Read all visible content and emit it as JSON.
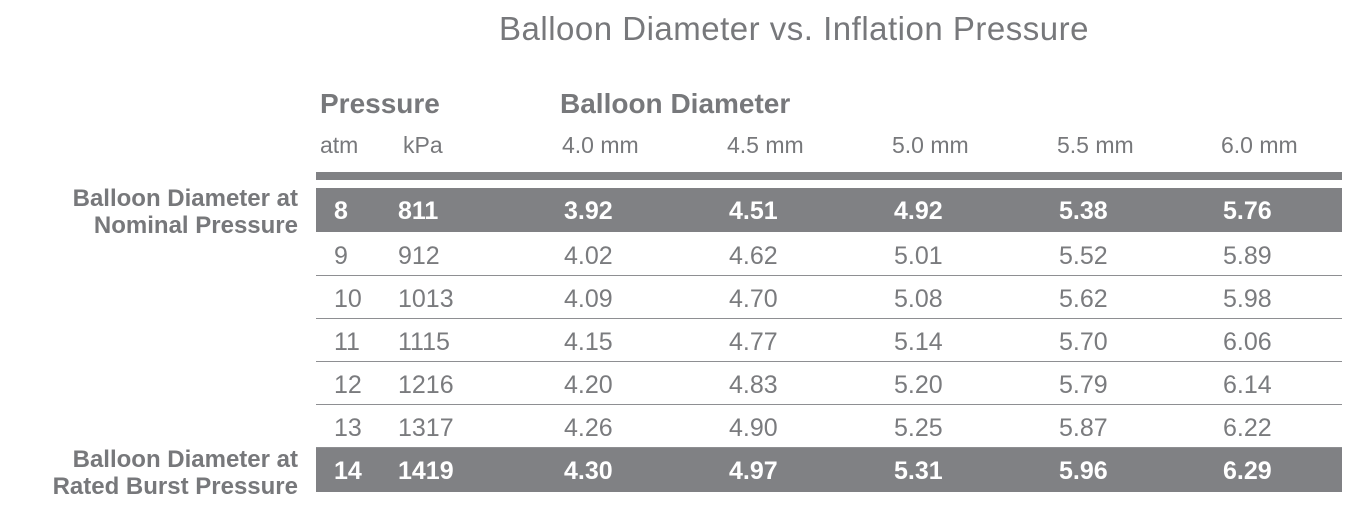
{
  "title": "Balloon Diameter vs. Inflation Pressure",
  "headers": {
    "pressure": "Pressure",
    "balloon_diameter": "Balloon Diameter",
    "atm": "atm",
    "kpa": "kPa",
    "sizes": [
      "4.0 mm",
      "4.5 mm",
      "5.0 mm",
      "5.5 mm",
      "6.0 mm"
    ]
  },
  "side_labels": {
    "nominal": [
      "Balloon Diameter at",
      "Nominal Pressure"
    ],
    "rated_burst": [
      "Balloon Diameter at",
      "Rated Burst Pressure"
    ]
  },
  "rows": [
    {
      "atm": "8",
      "kpa": "811",
      "values": [
        "3.92",
        "4.51",
        "4.92",
        "5.38",
        "5.76"
      ],
      "highlight": true
    },
    {
      "atm": "9",
      "kpa": "912",
      "values": [
        "4.02",
        "4.62",
        "5.01",
        "5.52",
        "5.89"
      ],
      "highlight": false
    },
    {
      "atm": "10",
      "kpa": "1013",
      "values": [
        "4.09",
        "4.70",
        "5.08",
        "5.62",
        "5.98"
      ],
      "highlight": false
    },
    {
      "atm": "11",
      "kpa": "1115",
      "values": [
        "4.15",
        "4.77",
        "5.14",
        "5.70",
        "6.06"
      ],
      "highlight": false
    },
    {
      "atm": "12",
      "kpa": "1216",
      "values": [
        "4.20",
        "4.83",
        "5.20",
        "5.79",
        "6.14"
      ],
      "highlight": false
    },
    {
      "atm": "13",
      "kpa": "1317",
      "values": [
        "4.26",
        "4.90",
        "5.25",
        "5.87",
        "6.22"
      ],
      "highlight": false
    },
    {
      "atm": "14",
      "kpa": "1419",
      "values": [
        "4.30",
        "4.97",
        "5.31",
        "5.96",
        "6.29"
      ],
      "highlight": true
    }
  ],
  "colors": {
    "highlight_row": "#808184",
    "text": "#7a7b7e",
    "highlight_text": "#ffffff"
  }
}
